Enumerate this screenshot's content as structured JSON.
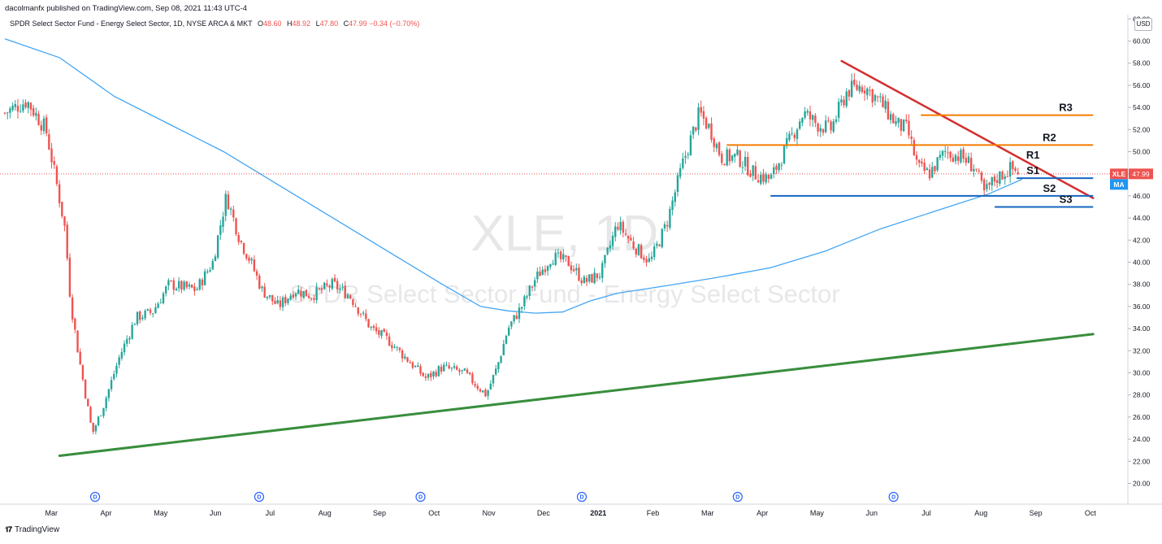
{
  "header": {
    "publisher": "dacolmanfx published on TradingView.com, Sep 08, 2021 11:43 UTC-4",
    "symbol_desc": "SPDR Select Sector Fund - Energy Select Sector, 1D, NYSE ARCA & MKT",
    "ohlc": {
      "o_label": "O",
      "o": "48.60",
      "h_label": "H",
      "h": "48.92",
      "l_label": "L",
      "l": "47.80",
      "c_label": "C",
      "c": "47.99",
      "change": "−0.34 (−0.70%)"
    },
    "currency": "USD"
  },
  "watermark": {
    "line1": "XLE, 1D",
    "line2": "SPDR Select Sector Fund - Energy Select Sector"
  },
  "footer": {
    "brand": "TradingView"
  },
  "colors": {
    "up": "#26a69a",
    "down": "#ef5350",
    "ma": "#42a5f5",
    "support_trend": "#388e3c",
    "resistance_trend": "#d32f2f",
    "resistance_level": "#f57c00",
    "support_level": "#1565c0"
  },
  "chart_data": {
    "type": "candlestick",
    "symbol": "XLE",
    "timeframe": "1D",
    "ylim": [
      18.5,
      62
    ],
    "yticks": [
      "20.00",
      "22.00",
      "24.00",
      "26.00",
      "28.00",
      "30.00",
      "32.00",
      "34.00",
      "36.00",
      "38.00",
      "40.00",
      "42.00",
      "44.00",
      "46.00",
      "48.00",
      "50.00",
      "52.00",
      "54.00",
      "56.00",
      "58.00",
      "60.00",
      "62.00"
    ],
    "x_range_months": [
      0,
      19.9
    ],
    "months": [
      "Mar",
      "Apr",
      "May",
      "Jun",
      "Jul",
      "Aug",
      "Sep",
      "Oct",
      "Nov",
      "Dec",
      "2021",
      "Feb",
      "Mar",
      "Apr",
      "May",
      "Jun",
      "Jul",
      "Aug",
      "Sep",
      "Oct"
    ],
    "price_anchors": [
      [
        0,
        53.5
      ],
      [
        0.4,
        54.6
      ],
      [
        0.75,
        52.0
      ],
      [
        0.95,
        47.0
      ],
      [
        1.1,
        43.0
      ],
      [
        1.2,
        36.5
      ],
      [
        1.35,
        31.5
      ],
      [
        1.6,
        24.5
      ],
      [
        1.8,
        27.0
      ],
      [
        2.1,
        31.5
      ],
      [
        2.4,
        35.0
      ],
      [
        2.7,
        35.5
      ],
      [
        3.0,
        38.0
      ],
      [
        3.5,
        37.5
      ],
      [
        3.8,
        40.0
      ],
      [
        4.05,
        46.0
      ],
      [
        4.3,
        42.0
      ],
      [
        4.5,
        40.0
      ],
      [
        4.7,
        37.5
      ],
      [
        5.0,
        36.0
      ],
      [
        5.3,
        37.5
      ],
      [
        5.6,
        37.0
      ],
      [
        6.0,
        38.0
      ],
      [
        6.3,
        37.0
      ],
      [
        6.7,
        34.0
      ],
      [
        7.0,
        33.0
      ],
      [
        7.3,
        31.5
      ],
      [
        7.7,
        29.5
      ],
      [
        8.0,
        30.5
      ],
      [
        8.4,
        30.0
      ],
      [
        8.8,
        28.0
      ],
      [
        9.0,
        30.5
      ],
      [
        9.2,
        34.0
      ],
      [
        9.45,
        36.0
      ],
      [
        9.7,
        38.5
      ],
      [
        10.0,
        40.5
      ],
      [
        10.3,
        40.0
      ],
      [
        10.6,
        38.2
      ],
      [
        10.9,
        39.0
      ],
      [
        11.2,
        43.5
      ],
      [
        11.5,
        41.5
      ],
      [
        11.8,
        40.0
      ],
      [
        12.1,
        43.5
      ],
      [
        12.4,
        49.0
      ],
      [
        12.7,
        53.5
      ],
      [
        12.9,
        52.0
      ],
      [
        13.1,
        49.5
      ],
      [
        13.4,
        49.5
      ],
      [
        13.7,
        48.0
      ],
      [
        14.0,
        47.5
      ],
      [
        14.3,
        50.5
      ],
      [
        14.6,
        53.5
      ],
      [
        14.85,
        52.5
      ],
      [
        15.1,
        52.0
      ],
      [
        15.4,
        55.5
      ],
      [
        15.7,
        56.0
      ],
      [
        16.0,
        54.5
      ],
      [
        16.3,
        52.5
      ],
      [
        16.5,
        52.0
      ],
      [
        16.7,
        48.5
      ],
      [
        16.9,
        48.0
      ],
      [
        17.2,
        50.0
      ],
      [
        17.5,
        49.5
      ],
      [
        17.75,
        48.5
      ],
      [
        17.9,
        46.2
      ],
      [
        18.1,
        47.5
      ],
      [
        18.4,
        48.5
      ],
      [
        18.57,
        47.99
      ]
    ],
    "last_price": {
      "value": 47.99,
      "label": "XLE",
      "price_label": "47.99"
    },
    "ma": {
      "label": "MA",
      "points": [
        [
          0,
          60.2
        ],
        [
          1.0,
          58.5
        ],
        [
          2.0,
          55.0
        ],
        [
          3.0,
          52.5
        ],
        [
          4.0,
          50.0
        ],
        [
          5.0,
          47.0
        ],
        [
          6.0,
          44.0
        ],
        [
          7.0,
          41.0
        ],
        [
          8.0,
          38.0
        ],
        [
          8.7,
          36.0
        ],
        [
          9.2,
          35.6
        ],
        [
          9.7,
          35.4
        ],
        [
          10.2,
          35.5
        ],
        [
          10.7,
          36.5
        ],
        [
          11.2,
          37.2
        ],
        [
          12.0,
          37.8
        ],
        [
          13.0,
          38.6
        ],
        [
          14.0,
          39.5
        ],
        [
          15.0,
          41.0
        ],
        [
          16.0,
          43.0
        ],
        [
          17.0,
          44.6
        ],
        [
          18.0,
          46.2
        ],
        [
          18.6,
          47.5
        ]
      ]
    },
    "trendlines": [
      {
        "name": "uptrend-support",
        "color_key": "support_trend",
        "from": [
          1.0,
          22.5
        ],
        "to": [
          19.9,
          33.5
        ],
        "width": 3
      },
      {
        "name": "downtrend-resistance",
        "color_key": "resistance_trend",
        "from": [
          15.3,
          58.2
        ],
        "to": [
          19.9,
          45.8
        ],
        "width": 2.5
      }
    ],
    "levels": [
      {
        "label": "R3",
        "value": 53.3,
        "from": 16.75,
        "to": 19.9,
        "color_key": "resistance_level",
        "label_x": 19.4
      },
      {
        "label": "R2",
        "value": 50.6,
        "from": 13.2,
        "to": 19.9,
        "color_key": "resistance_level",
        "label_x": 19.1
      },
      {
        "label": "R1",
        "value": 49.0,
        "from": null,
        "to": null,
        "color_key": "resistance_level",
        "label_x": 18.8
      },
      {
        "label": "S1",
        "value": 47.6,
        "from": 18.5,
        "to": 19.9,
        "color_key": "support_level",
        "label_x": 18.8
      },
      {
        "label": "S2",
        "value": 46.0,
        "from": 14.0,
        "to": 19.9,
        "color_key": "support_level",
        "label_x": 19.1
      },
      {
        "label": "S3",
        "value": 45.0,
        "from": 18.1,
        "to": 19.9,
        "color_key": "support_level",
        "label_x": 19.4
      }
    ],
    "dividend_markers": {
      "label": "D",
      "x": [
        1.65,
        4.65,
        7.6,
        10.55,
        13.4,
        16.25
      ]
    }
  }
}
